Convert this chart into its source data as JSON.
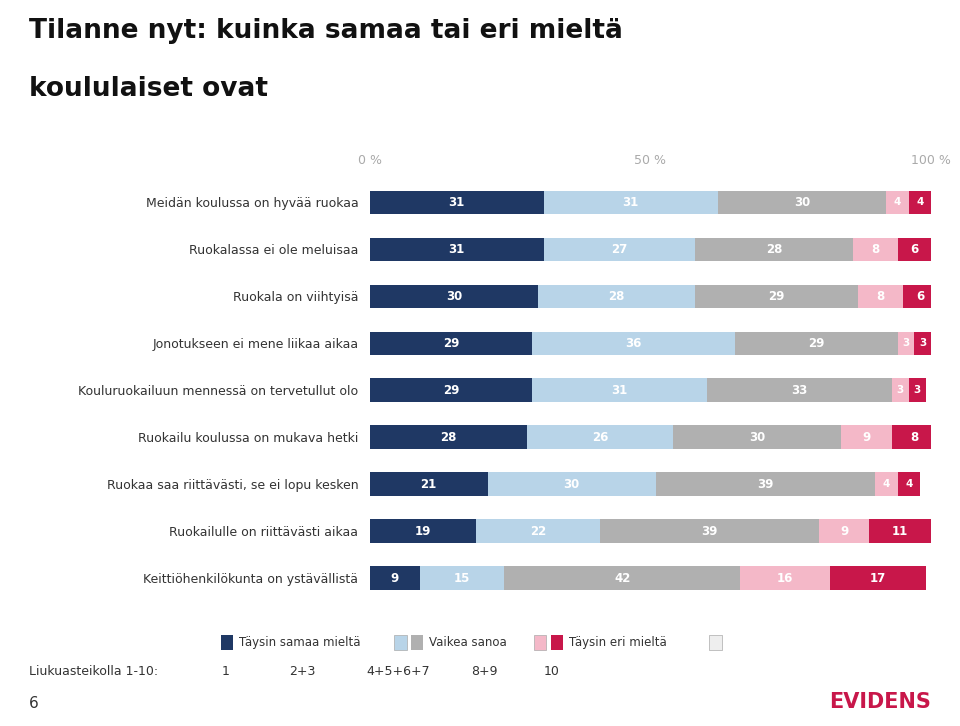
{
  "title_line1": "Tilanne nyt: kuinka samaa tai eri mieltä",
  "title_line2": "koululaiset ovat",
  "categories": [
    "Meidän koulussa on hyvää ruokaa",
    "Ruokalassa ei ole meluisaa",
    "Ruokala on viihtyisä",
    "Jonotukseen ei mene liikaa aikaa",
    "Kouluruokailuun mennessä on tervetullut olo",
    "Ruokailu koulussa on mukava hetki",
    "Ruokaa saa riittävästi, se ei lopu kesken",
    "Ruokailulle on riittävästi aikaa",
    "Keittiöhenkilökunta on ystävällistä"
  ],
  "segments": [
    [
      31,
      31,
      30,
      4,
      4
    ],
    [
      31,
      27,
      28,
      8,
      6
    ],
    [
      30,
      28,
      29,
      8,
      6
    ],
    [
      29,
      36,
      29,
      3,
      3
    ],
    [
      29,
      31,
      33,
      3,
      3
    ],
    [
      28,
      26,
      30,
      9,
      8
    ],
    [
      21,
      30,
      39,
      4,
      4
    ],
    [
      19,
      22,
      39,
      9,
      11
    ],
    [
      9,
      15,
      42,
      16,
      17
    ]
  ],
  "colors": [
    "#1f3864",
    "#b8d4e8",
    "#b0b0b0",
    "#f4b8c8",
    "#c8174a"
  ],
  "bar_height": 0.5,
  "background_color": "#ffffff",
  "tick_label_color": "#aaaaaa",
  "text_color": "#333333",
  "evidens_color": "#c8174a",
  "page_number": "6",
  "scale_label": "Liukuasteikolla 1-10:",
  "scale_ticks": [
    "1",
    "2+3",
    "4+5+6+7",
    "8+9",
    "10"
  ]
}
